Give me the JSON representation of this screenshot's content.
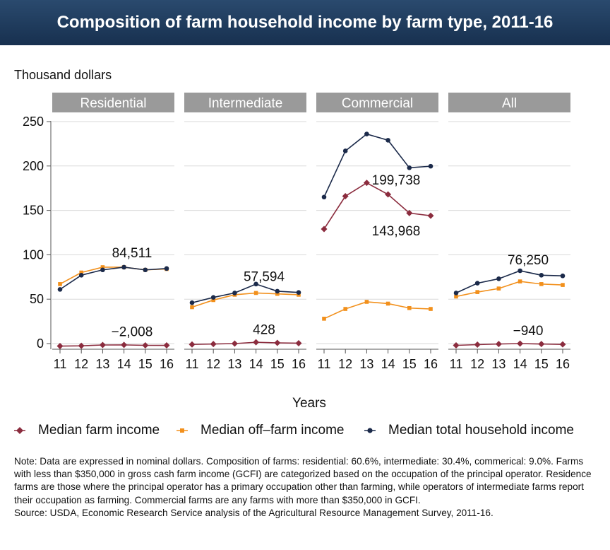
{
  "title": "Composition of farm household income by farm type, 2011-16",
  "chart_data": {
    "type": "line",
    "ylabel": "Thousand dollars",
    "xlabel": "Years",
    "ylim": [
      0,
      250
    ],
    "yticks": [
      0,
      50,
      100,
      150,
      200,
      250
    ],
    "x": [
      "11",
      "12",
      "13",
      "14",
      "15",
      "16"
    ],
    "grid": true,
    "legend_position": "bottom",
    "colors": {
      "Median farm income": "#8b2c3e",
      "Median off-farm income": "#f2901c",
      "Median total household income": "#1b2a4a"
    },
    "panels": [
      {
        "name": "Residential",
        "series": [
          {
            "name": "Median farm income",
            "values": [
              -2.8,
              -2.5,
              -1.6,
              -1.5,
              -2.0,
              -2.008
            ]
          },
          {
            "name": "Median off-farm income",
            "values": [
              67,
              80,
              86,
              86,
              83,
              84
            ]
          },
          {
            "name": "Median total household income",
            "values": [
              61,
              77,
              83,
              86,
              83,
              84.511
            ]
          }
        ],
        "labels": {
          "total": "84,511",
          "farm": "−2,008"
        }
      },
      {
        "name": "Intermediate",
        "series": [
          {
            "name": "Median farm income",
            "values": [
              -1.0,
              -0.5,
              0.0,
              1.5,
              0.8,
              0.428
            ]
          },
          {
            "name": "Median off-farm income",
            "values": [
              41,
              49,
              55,
              57,
              56,
              55
            ]
          },
          {
            "name": "Median total household income",
            "values": [
              46,
              52,
              57,
              67,
              59,
              57.594
            ]
          }
        ],
        "labels": {
          "total": "57,594",
          "farm": "428"
        }
      },
      {
        "name": "Commercial",
        "series": [
          {
            "name": "Median farm income",
            "values": [
              129,
              166,
              181,
              168,
              147,
              143.968
            ]
          },
          {
            "name": "Median off-farm income",
            "values": [
              28,
              39,
              47,
              45,
              40,
              39
            ]
          },
          {
            "name": "Median total household income",
            "values": [
              165,
              217,
              236,
              229,
              198,
              199.738
            ]
          }
        ],
        "labels": {
          "total": "199,738",
          "farm": "143,968"
        }
      },
      {
        "name": "All",
        "series": [
          {
            "name": "Median farm income",
            "values": [
              -2.0,
              -1.2,
              -0.5,
              0.0,
              -0.5,
              -0.94
            ]
          },
          {
            "name": "Median off-farm income",
            "values": [
              53,
              58,
              62,
              70,
              67,
              66
            ]
          },
          {
            "name": "Median total household income",
            "values": [
              57,
              68,
              73,
              82,
              77,
              76.25
            ]
          }
        ],
        "labels": {
          "total": "76,250",
          "farm": "−940"
        }
      }
    ]
  },
  "legend": [
    {
      "name": "Median farm income",
      "marker": "diamond"
    },
    {
      "name": "Median off–farm income",
      "marker": "square"
    },
    {
      "name": "Median total household income",
      "marker": "circle"
    }
  ],
  "notes": {
    "note": "Note: Data are expressed in nominal dollars. Composition of farms: residential: 60.6%, intermediate: 30.4%, commerical: 9.0%. Farms with less than $350,000 in gross cash farm income (GCFI) are categorized based on the occupation of the principal operator. Residence farms are those where the principal operator has a primary occupation other than farming, while operators of intermediate farms report their occupation as farming. Commercial farms are any farms with more than $350,000 in GCFI.",
    "source": "Source: USDA, Economic Research Service analysis of the Agricultural Resource Management Survey, 2011-16."
  }
}
